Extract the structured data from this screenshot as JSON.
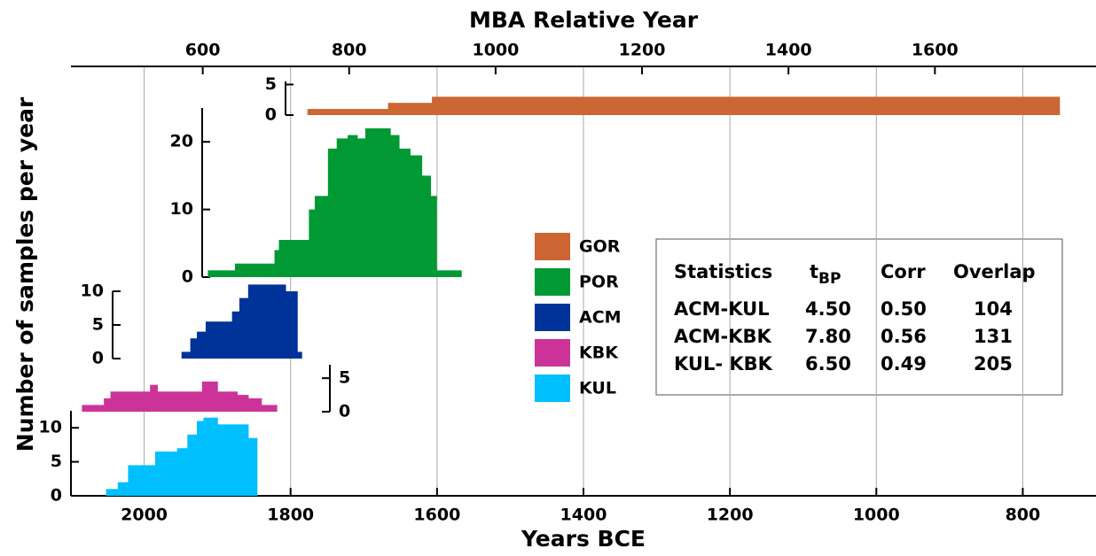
{
  "chart_data": {
    "type": "step-histogram",
    "title": "MBA Relative Year",
    "x_label": "Years BCE",
    "y_label": "Number of samples per year",
    "xlim": [
      2100,
      700
    ],
    "xticks": [
      2000,
      1800,
      1600,
      1400,
      1200,
      1000,
      800
    ],
    "x2lim": [
      420,
      1820
    ],
    "x2ticks": [
      600,
      800,
      1000,
      1200,
      1400,
      1600
    ],
    "grid": true,
    "series": [
      {
        "name": "GOR",
        "color": "#cc6633",
        "ylim": [
          0,
          5.5
        ],
        "yticks": [
          0,
          5
        ],
        "bins": [
          1777,
          1667,
          1607,
          750
        ],
        "values": [
          1,
          2,
          3
        ]
      },
      {
        "name": "POR",
        "color": "#009933",
        "ylim": [
          0,
          25
        ],
        "yticks": [
          0,
          10,
          20
        ],
        "bins": [
          1913,
          1876,
          1822,
          1816,
          1775,
          1767,
          1749,
          1737,
          1722,
          1709,
          1698,
          1664,
          1652,
          1637,
          1621,
          1609,
          1601,
          1567
        ],
        "values": [
          1,
          2,
          4,
          5.5,
          10,
          12,
          19,
          20.5,
          21,
          20.5,
          22,
          21,
          19,
          18,
          15,
          12,
          1
        ]
      },
      {
        "name": "ACM",
        "color": "#003399",
        "ylim": [
          0,
          10
        ],
        "yticks": [
          0,
          5,
          10
        ],
        "bins": [
          1949,
          1937,
          1928,
          1916,
          1880,
          1870,
          1858,
          1807,
          1791,
          1785
        ],
        "values": [
          1,
          3,
          4,
          5.5,
          7,
          9,
          11,
          10,
          1
        ]
      },
      {
        "name": "KBK",
        "color": "#cc3399",
        "ylim": [
          0,
          7
        ],
        "yticks": [
          0,
          5
        ],
        "bins": [
          2085,
          2055,
          2046,
          1992,
          1982,
          1921,
          1900,
          1873,
          1858,
          1840,
          1819
        ],
        "values": [
          1,
          2,
          3,
          4,
          3,
          4.5,
          3,
          2.5,
          2,
          1
        ]
      },
      {
        "name": "KUL",
        "color": "#00bfff",
        "ylim": [
          0,
          12.5
        ],
        "yticks": [
          0,
          5,
          10
        ],
        "bins": [
          2052,
          2036,
          2022,
          1985,
          1955,
          1941,
          1928,
          1919,
          1900,
          1888,
          1858,
          1846
        ],
        "values": [
          1,
          2,
          4.5,
          6.5,
          7,
          9,
          11,
          11.5,
          10.5,
          10.5,
          8.5
        ]
      }
    ],
    "stats_table": {
      "headers": [
        "Statistics",
        "t",
        "Corr",
        "Overlap"
      ],
      "t_subscript": "BP",
      "rows": [
        [
          "ACM-KUL",
          "4.50",
          "0.50",
          "104"
        ],
        [
          "ACM-KBK",
          "7.80",
          "0.56",
          "131"
        ],
        [
          "KUL- KBK",
          "6.50",
          "0.49",
          "205"
        ]
      ]
    }
  }
}
